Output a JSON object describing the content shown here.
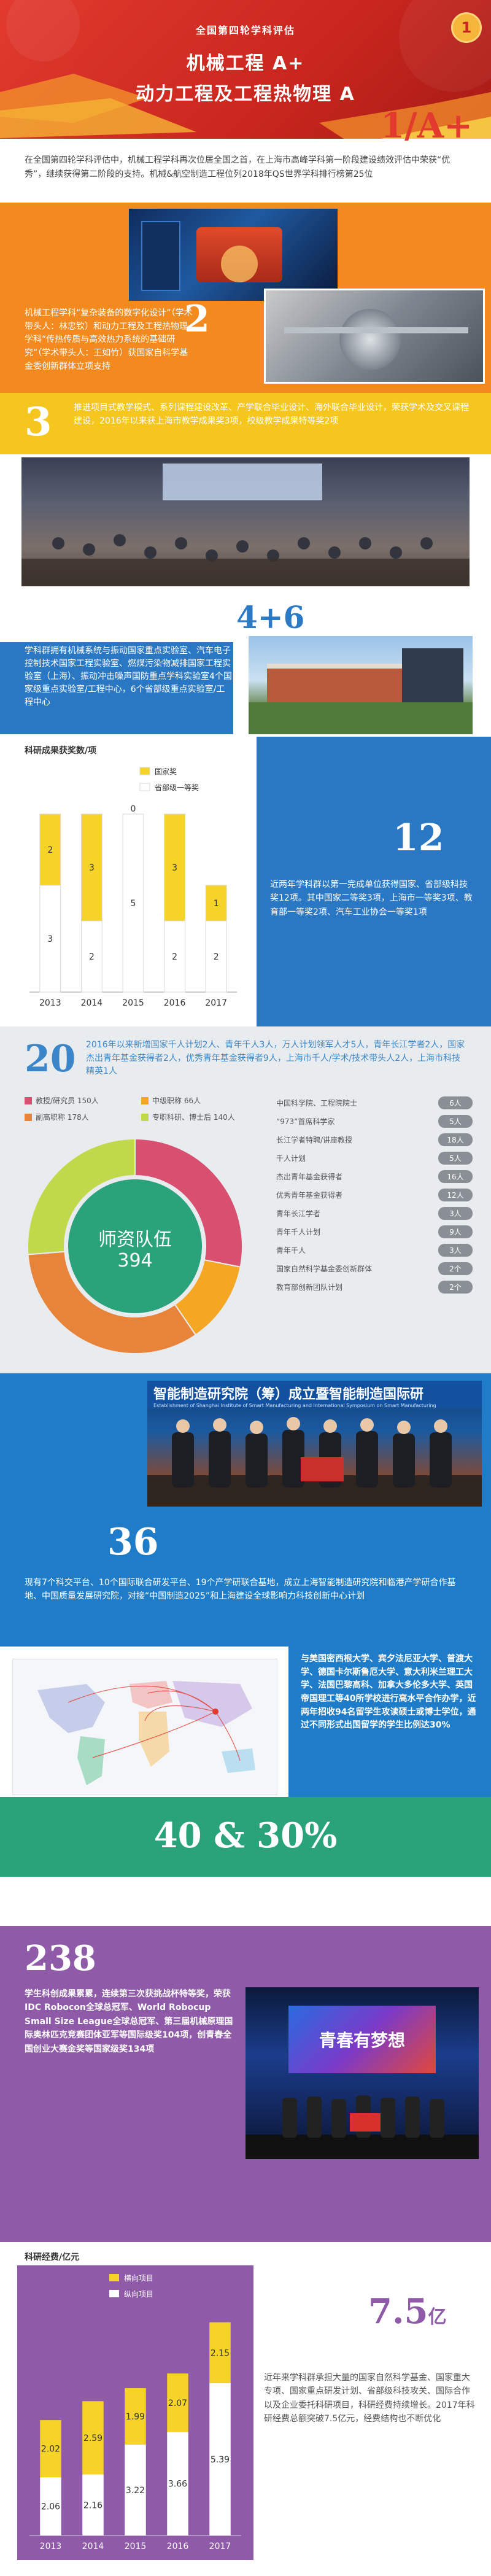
{
  "hero": {
    "subtitle": "全国第四轮学科评估",
    "line1": "机械工程 A+",
    "line2": "动力工程及工程热物理 A",
    "badge_number": "1",
    "big_number": "1/A+",
    "description": "在全国第四轮学科评估中，机械工程学科再次位居全国之首，在上海市高峰学科第一阶段建设绩效评估中荣获“优秀”，继续获得第二阶段的支持。机械&航空制造工程位列2018年QS世界学科排行榜第25位"
  },
  "sec2": {
    "big_number": "2",
    "description": "机械工程学科“复杂装备的数字化设计”（学术带头人：林忠钦）和动力工程及工程热物理学科“传热传质与高效热力系统的基础研究”（学术带头人：王如竹）获国家自科学基金委创新群体立项支持"
  },
  "sec3": {
    "big_number": "3",
    "description": "推进项目式教学模式、系列课程建设改革、产学联合毕业设计、海外联合毕业设计，荣获学术及交叉课程建设，2016年以来获上海市教学成果奖3项，校级教学成果特等奖2项"
  },
  "sec46": {
    "big_number": "4+6",
    "description": "学科群拥有机械系统与振动国家重点实验室、汽车电子控制技术国家工程实验室、燃煤污染物减排国家工程实验室（上海）、振动冲击噪声国防重点学科实验室4个国家级重点实验室/工程中心，6个省部级重点实验室/工程中心"
  },
  "awards": {
    "chart_title": "科研成果获奖数/项",
    "big_number": "12",
    "description": "近两年学科群以第一完成单位获得国家、省部级科技奖12项。其中国家二等奖3项，上海市一等奖3项、教育部一等奖2项、汽车工业协会一等奖1项"
  },
  "chart_data": [
    {
      "type": "bar",
      "title": "科研成果获奖数/项",
      "categories": [
        "2013",
        "2014",
        "2015",
        "2016",
        "2017"
      ],
      "series": [
        {
          "name": "国家奖",
          "values": [
            2,
            3,
            0,
            3,
            1
          ],
          "color": "#f5d327"
        },
        {
          "name": "省部级一等奖",
          "values": [
            3,
            2,
            5,
            2,
            2
          ],
          "color": "#ffffff"
        }
      ],
      "stacked": true,
      "legend": "top-right"
    },
    {
      "type": "pie",
      "title": "师资队伍",
      "total": "394",
      "series": [
        {
          "name": "教授/研究员",
          "value": 150,
          "label": "教授/研究员 150人",
          "color": "#d94f70"
        },
        {
          "name": "中级职称",
          "value": 66,
          "label": "中级职称 66人",
          "color": "#f5a623"
        },
        {
          "name": "副高职称",
          "value": 178,
          "label": "副高职称 178人",
          "color": "#e8833a"
        },
        {
          "name": "专职科研、博士后",
          "value": 140,
          "label": "专职科研、博士后 140人",
          "color": "#c0d94a"
        }
      ]
    },
    {
      "type": "bar",
      "title": "科研经费/亿元",
      "categories": [
        "2013",
        "2014",
        "2015",
        "2016",
        "2017"
      ],
      "series": [
        {
          "name": "横向项目",
          "values": [
            2.02,
            2.59,
            1.99,
            2.07,
            2.15
          ],
          "color": "#f5d327"
        },
        {
          "name": "纵向项目",
          "values": [
            2.06,
            2.16,
            3.22,
            3.66,
            5.39
          ],
          "color": "#ffffff"
        }
      ],
      "stacked": true,
      "legend": "top-center"
    }
  ],
  "team": {
    "big_number": "20",
    "intro": "2016年以来新增国家千人计划2人、青年千人3人，万人计划领军人才5人，青年长江学者2人，国家杰出青年基金获得者2人，优秀青年基金获得者9人，上海市千人/学术/技术带头人2人，上海市科技精英1人",
    "title": "师资队伍",
    "total": "394",
    "honors": [
      {
        "name": "中国科学院、工程院院士",
        "count": "6人"
      },
      {
        "name": "“973”首席科学家",
        "count": "5人"
      },
      {
        "name": "长江学者特聘/讲座教授",
        "count": "18人"
      },
      {
        "name": "千人计划",
        "count": "5人"
      },
      {
        "name": "杰出青年基金获得者",
        "count": "16人"
      },
      {
        "name": "优秀青年基金获得者",
        "count": "12人"
      },
      {
        "name": "青年长江学者",
        "count": "3人"
      },
      {
        "name": "青年千人计划",
        "count": "9人"
      },
      {
        "name": "青年千人",
        "count": "3人"
      },
      {
        "name": "国家自然科学基金委创新群体",
        "count": "2个"
      },
      {
        "name": "教育部创新团队计划",
        "count": "2个"
      }
    ]
  },
  "platform": {
    "banner": "智能制造研究院（筹）成立暨智能制造国际研",
    "banner_sub": "Establishment of Shanghai Institute of Smart Manufacturing and International Symposium on Smart Manufacturing",
    "big_number": "36",
    "description": "现有7个科交平台、10个国际联合研发平台、19个产学研联合基地，成立上海智能制造研究院和临港产学研合作基地、中国质量发展研究院，对接“中国制造2025”和上海建设全球影响力科技创新中心计划"
  },
  "international": {
    "description": "与美国密西根大学、宾夕法尼亚大学、普渡大学、德国卡尔斯鲁厄大学、意大利米兰理工大学、法国巴黎高科、加拿大多伦多大学、英国帝国理工等40所学校进行高水平合作办学，近两年招收94名留学生攻读硕士或博士学位，通过不同形式出国留学的学生比例达30%",
    "big_number": "40 & 30%"
  },
  "students": {
    "big_number": "238",
    "description": "学生科创成果累累，连续第三次获挑战杯特等奖，荣获IDC Robocon全球总冠军、World Robocup Small Size League全球总冠军、第三届机械原理国际奥林匹克竞赛团体亚军等国际级奖104项，创青春全国创业大赛金奖等国家级奖134项",
    "screen_text": "青春有梦想"
  },
  "funding": {
    "chart_title": "科研经费/亿元",
    "big_number": "7.5",
    "big_unit": "亿",
    "description": "近年来学科群承担大量的国家自然科学基金、国家重大专项、国家重点研发计划、省部级科技攻关、国际合作以及企业委托科研项目，科研经费持续增长。2017年科研经费总额突破7.5亿元，经费结构也不断优化"
  }
}
